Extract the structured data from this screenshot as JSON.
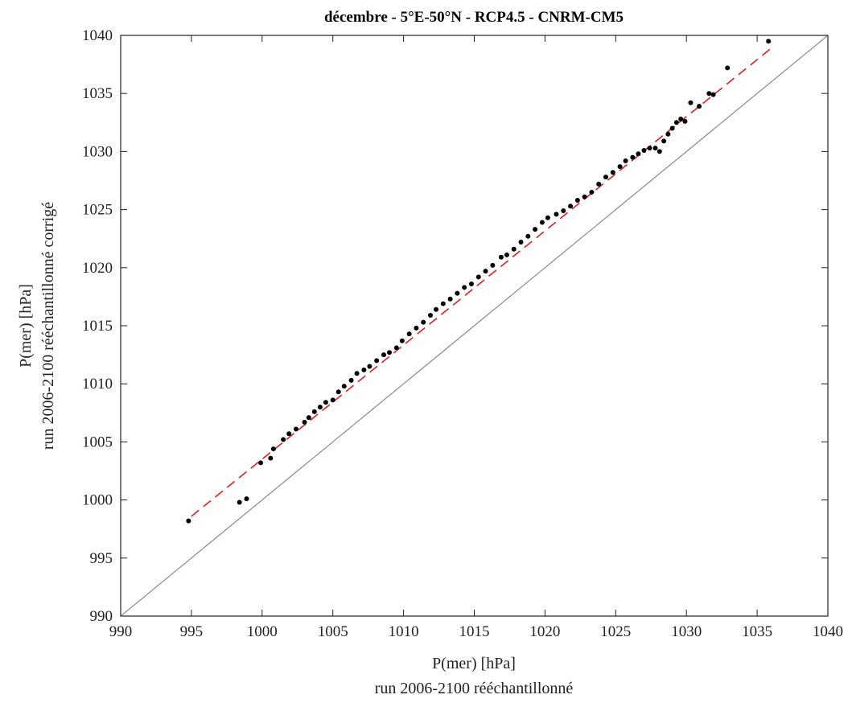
{
  "chart_data": {
    "type": "scatter",
    "title": "décembre - 5°E-50°N - RCP4.5 - CNRM-CM5",
    "xlabel": [
      "P(mer) [hPa]",
      "run 2006-2100 rééchantillonné"
    ],
    "ylabel": [
      "P(mer) [hPa]",
      "run 2006-2100 rééchantillonné corrigé"
    ],
    "xlim": [
      990,
      1040
    ],
    "ylim": [
      990,
      1040
    ],
    "xticks": [
      "990",
      "995",
      "1000",
      "1005",
      "1010",
      "1015",
      "1020",
      "1025",
      "1030",
      "1035",
      "1040"
    ],
    "yticks": [
      "990",
      "995",
      "1000",
      "1005",
      "1010",
      "1015",
      "1020",
      "1025",
      "1030",
      "1035",
      "1040"
    ],
    "grid": false,
    "colors": {
      "points": "#000000",
      "fit": "#e02020",
      "identity": "#8a8a8a"
    },
    "series": [
      {
        "kind": "points",
        "x": [
          994.8,
          998.4,
          998.9,
          999.9,
          1000.6,
          1000.8,
          1001.5,
          1001.9,
          1002.4,
          1003.0,
          1003.3,
          1003.7,
          1004.1,
          1004.5,
          1005.0,
          1005.4,
          1005.8,
          1006.3,
          1006.7,
          1007.2,
          1007.6,
          1008.1,
          1008.6,
          1009.0,
          1009.5,
          1009.9,
          1010.4,
          1010.9,
          1011.4,
          1011.9,
          1012.3,
          1012.8,
          1013.3,
          1013.8,
          1014.3,
          1014.8,
          1015.3,
          1015.8,
          1016.3,
          1016.9,
          1017.3,
          1017.8,
          1018.3,
          1018.8,
          1019.3,
          1019.8,
          1020.2,
          1020.8,
          1021.3,
          1021.8,
          1022.3,
          1022.8,
          1023.3,
          1023.8,
          1024.3,
          1024.8,
          1025.3,
          1025.7,
          1026.2,
          1026.6,
          1027.0,
          1027.4,
          1027.8,
          1028.1,
          1028.4,
          1028.7,
          1029.0,
          1029.3,
          1029.6,
          1029.9,
          1030.3,
          1030.9,
          1031.6,
          1031.9,
          1032.9,
          1035.8
        ],
        "y": [
          998.2,
          999.8,
          1000.1,
          1003.2,
          1003.6,
          1004.4,
          1005.2,
          1005.7,
          1006.1,
          1006.7,
          1007.1,
          1007.6,
          1008.0,
          1008.4,
          1008.6,
          1009.3,
          1009.8,
          1010.3,
          1010.9,
          1011.2,
          1011.5,
          1012.0,
          1012.5,
          1012.7,
          1013.1,
          1013.7,
          1014.3,
          1014.8,
          1015.3,
          1015.9,
          1016.4,
          1016.9,
          1017.3,
          1017.8,
          1018.3,
          1018.6,
          1019.2,
          1019.7,
          1020.2,
          1020.9,
          1021.1,
          1021.6,
          1022.2,
          1022.7,
          1023.3,
          1023.9,
          1024.3,
          1024.6,
          1024.9,
          1025.3,
          1025.8,
          1026.1,
          1026.5,
          1027.2,
          1027.8,
          1028.2,
          1028.7,
          1029.2,
          1029.5,
          1029.8,
          1030.1,
          1030.3,
          1030.3,
          1030.0,
          1030.9,
          1031.5,
          1032.0,
          1032.5,
          1032.8,
          1032.6,
          1034.2,
          1033.9,
          1035.0,
          1034.9,
          1037.2,
          1039.5
        ]
      },
      {
        "kind": "fit-line-dashed",
        "x": [
          995,
          1036
        ],
        "y": [
          998.6,
          1038.9
        ]
      },
      {
        "kind": "identity-line",
        "x": [
          990,
          1040
        ],
        "y": [
          990,
          1040
        ]
      }
    ]
  }
}
